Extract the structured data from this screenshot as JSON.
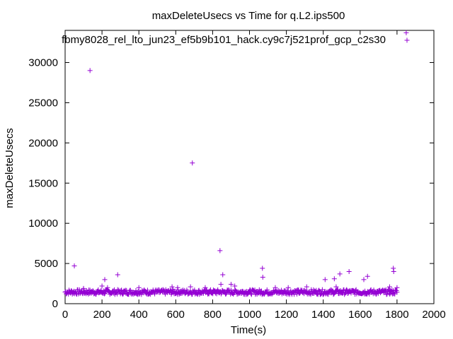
{
  "chart_data": {
    "type": "scatter",
    "title": "maxDeleteUsecs vs Time for q.L2.ips500",
    "xlabel": "Time(s)",
    "ylabel": "maxDeleteUsecs",
    "xlim": [
      0,
      2000
    ],
    "ylim": [
      0,
      34000
    ],
    "xticks": [
      0,
      200,
      400,
      600,
      800,
      1000,
      1200,
      1400,
      1600,
      1800,
      2000
    ],
    "yticks": [
      0,
      5000,
      10000,
      15000,
      20000,
      25000,
      30000
    ],
    "grid": false,
    "legend_position": "top-right",
    "marker": "plus",
    "color": "#9400d3",
    "series": [
      {
        "name": "fbmy8028_rel_lto_jun23_ef5b9b101_hack.cy9c7j521prof_gcp_c2s30",
        "baseline_band": {
          "x_start": 0,
          "x_end": 1800,
          "y_min": 1000,
          "y_max": 2000,
          "typical": 1450
        },
        "points": [
          [
            50,
            4700
          ],
          [
            100,
            1900
          ],
          [
            135,
            29000
          ],
          [
            200,
            2200
          ],
          [
            215,
            3000
          ],
          [
            230,
            2000
          ],
          [
            285,
            3600
          ],
          [
            400,
            2000
          ],
          [
            580,
            2100
          ],
          [
            610,
            2000
          ],
          [
            680,
            2100
          ],
          [
            690,
            17500
          ],
          [
            760,
            2000
          ],
          [
            840,
            6600
          ],
          [
            845,
            2400
          ],
          [
            855,
            3600
          ],
          [
            900,
            2400
          ],
          [
            920,
            2200
          ],
          [
            1070,
            4400
          ],
          [
            1072,
            3300
          ],
          [
            1140,
            2000
          ],
          [
            1210,
            2000
          ],
          [
            1310,
            2100
          ],
          [
            1410,
            3000
          ],
          [
            1460,
            3100
          ],
          [
            1470,
            2100
          ],
          [
            1490,
            3700
          ],
          [
            1540,
            4000
          ],
          [
            1620,
            3000
          ],
          [
            1640,
            3400
          ],
          [
            1760,
            2100
          ],
          [
            1780,
            4400
          ],
          [
            1782,
            4000
          ],
          [
            1800,
            2000
          ],
          [
            1850,
            33700
          ]
        ]
      }
    ]
  }
}
